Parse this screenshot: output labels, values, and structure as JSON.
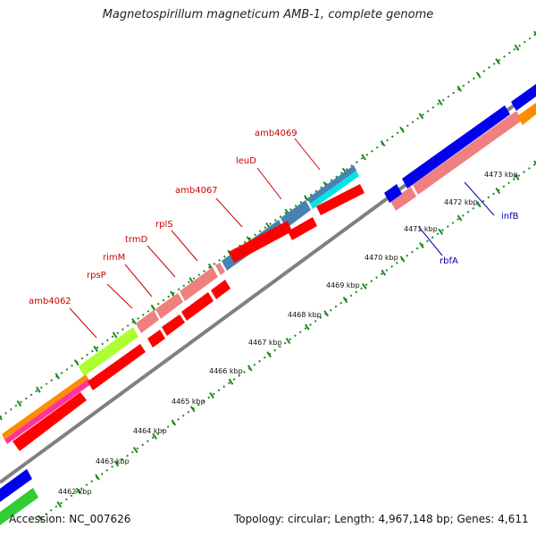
{
  "title": "Magnetospirillum magneticum AMB-1, complete genome",
  "footer": {
    "accession": "Accession: NC_007626",
    "info": "Topology: circular; Length: 4,967,148 bp; Genes: 4,611"
  },
  "kbp_labels": [
    "4462 kbp",
    "4463 kbp",
    "4464 kbp",
    "4465 kbp",
    "4466 kbp",
    "4467 kbp",
    "4468 kbp",
    "4469 kbp",
    "4470 kbp",
    "4471 kbp",
    "4472 kbp",
    "4473 kbp"
  ],
  "gene_labels": {
    "amb4062": "amb4062",
    "rpsP": "rpsP",
    "rimM": "rimM",
    "trmD": "trmD",
    "rplS": "rplS",
    "amb4067": "amb4067",
    "leuD": "leuD",
    "amb4069": "amb4069",
    "rbfA": "rbfA",
    "infB": "infB"
  },
  "colors": {
    "red": "#ff0000",
    "salmon": "#f08080",
    "steelblue": "#4682b4",
    "cyan": "#00e5e5",
    "lime": "#adff2f",
    "blue": "#0000ee",
    "green": "#33cc33",
    "orange": "#ff8c00",
    "magenta": "#ff00cc",
    "backbone": "#808080",
    "ticks": "#1a8a1a"
  }
}
